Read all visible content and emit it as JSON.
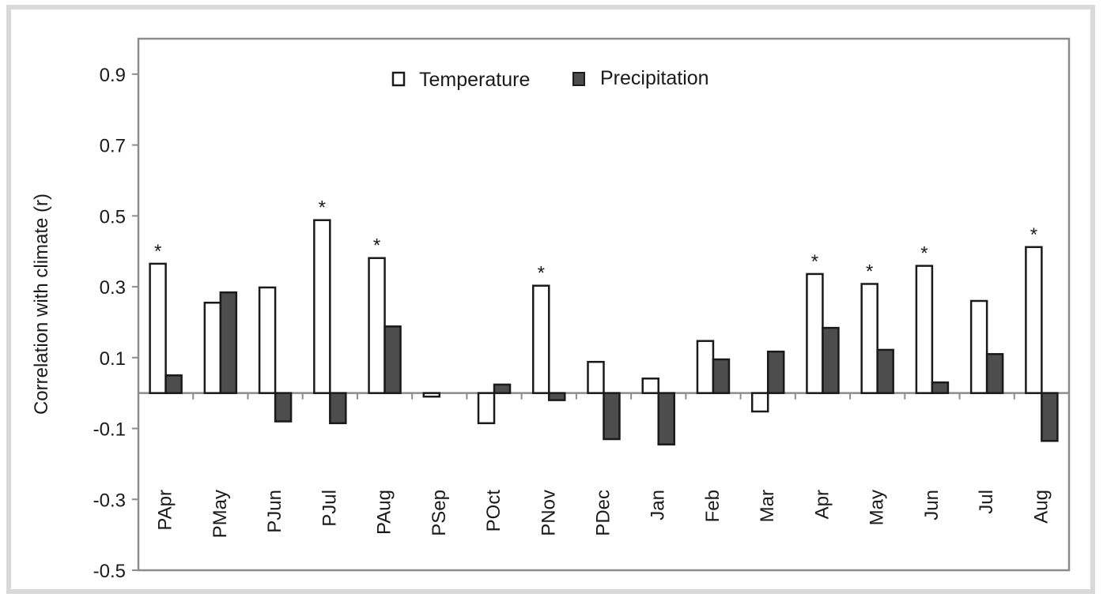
{
  "chart_data": {
    "type": "bar",
    "ylabel": "Correlation with climate (r)",
    "xlabel": "",
    "ylim": [
      -0.5,
      1.0
    ],
    "yticks": [
      "0.9",
      "0.7",
      "0.5",
      "0.3",
      "0.1",
      "-0.1",
      "-0.3",
      "-0.5"
    ],
    "categories": [
      "PApr",
      "PMay",
      "PJun",
      "PJul",
      "PAug",
      "PSep",
      "POct",
      "PNov",
      "PDec",
      "Jan",
      "Feb",
      "Mar",
      "Apr",
      "May",
      "Jun",
      "Jul",
      "Aug"
    ],
    "series": [
      {
        "name": "Temperature",
        "values": [
          0.365,
          0.255,
          0.298,
          0.488,
          0.381,
          -0.01,
          -0.085,
          0.303,
          0.088,
          0.041,
          0.147,
          -0.052,
          0.336,
          0.308,
          0.359,
          0.26,
          0.412
        ]
      },
      {
        "name": "Precipitation",
        "values": [
          0.05,
          0.284,
          -0.08,
          -0.085,
          0.188,
          0.0,
          0.024,
          -0.02,
          -0.13,
          -0.145,
          0.095,
          0.117,
          0.184,
          0.122,
          0.03,
          0.11,
          -0.135
        ]
      }
    ],
    "significance_marker": "*",
    "significant_temperature": [
      true,
      false,
      false,
      true,
      true,
      false,
      false,
      true,
      false,
      false,
      false,
      false,
      true,
      true,
      true,
      false,
      true
    ],
    "legend": "top-center",
    "grid": false,
    "colors": {
      "temperature": "#ffffff",
      "precipitation": "#4d4d4d",
      "outline": "#1a1a1a",
      "zero_line": "#8c8c8c"
    }
  }
}
